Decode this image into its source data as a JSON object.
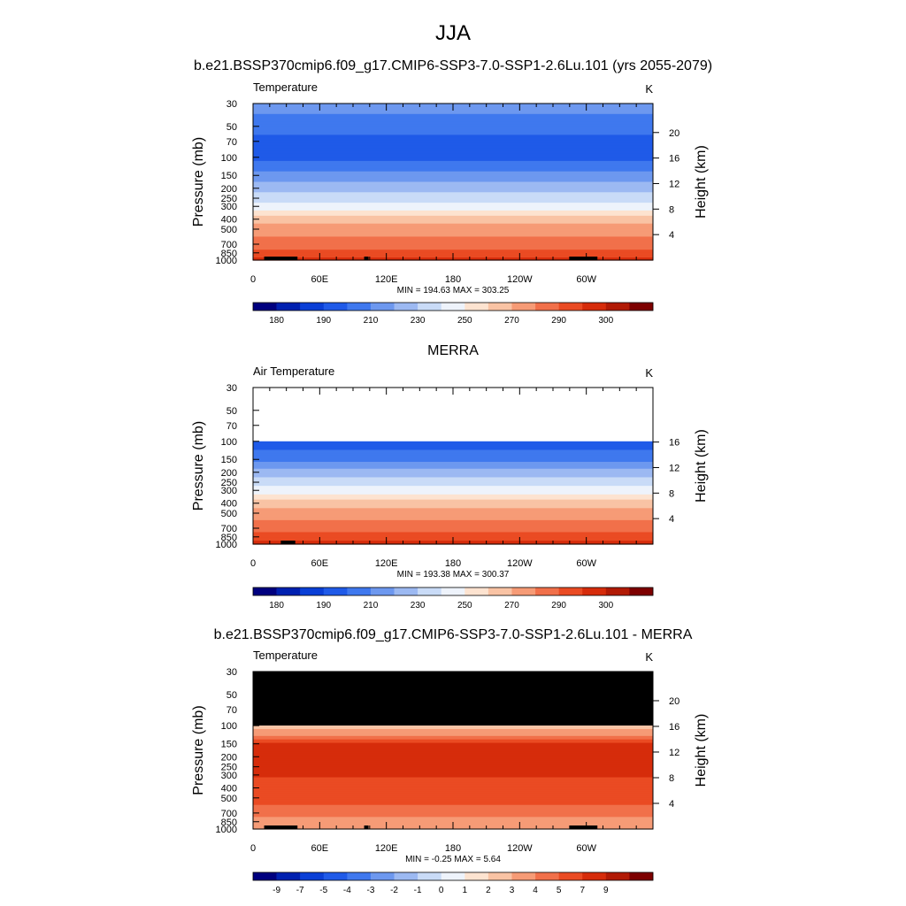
{
  "page": {
    "title": "JJA"
  },
  "colors": {
    "temp_levels": [
      "#00007f",
      "#0020b0",
      "#0a3fd6",
      "#1f5ae8",
      "#3f78ee",
      "#6d98ef",
      "#9cb9f2",
      "#c9dbf7",
      "#eef3fb",
      "#fde3d0",
      "#f9c3a4",
      "#f69b76",
      "#f1704a",
      "#ea4b23",
      "#d62c0b",
      "#b11a05",
      "#7d0000"
    ],
    "diff_levels": [
      "#00007f",
      "#0020b0",
      "#0a3fd6",
      "#1f5ae8",
      "#3f78ee",
      "#6d98ef",
      "#9cb9f2",
      "#c9dbf7",
      "#eef3fb",
      "#fde3d0",
      "#f9c3a4",
      "#f69b76",
      "#f1704a",
      "#ea4b23",
      "#d62c0b",
      "#b11a05",
      "#7d0000"
    ],
    "missing": "#000000"
  },
  "chart_data": [
    {
      "type": "heatmap",
      "title": "b.e21.BSSP370cmip6.f09_g17.CMIP6-SSP3-7.0-SSP1-2.6Lu.101 (yrs 2055-2079)",
      "left_label": "Temperature",
      "units": "K",
      "ylabel": "Pressure (mb)",
      "y2label": "Height (km)",
      "x_ticks": [
        "0",
        "60E",
        "120E",
        "180",
        "120W",
        "60W"
      ],
      "x_tick_values": [
        0,
        60,
        120,
        180,
        240,
        300
      ],
      "xlim": [
        0,
        360
      ],
      "y_ticks": [
        "30",
        "50",
        "70",
        "100",
        "150",
        "200",
        "250",
        "300",
        "400",
        "500",
        "700",
        "850",
        "1000"
      ],
      "y_tick_values": [
        30,
        50,
        70,
        100,
        150,
        200,
        250,
        300,
        400,
        500,
        700,
        850,
        1000
      ],
      "ylim": [
        30,
        1000
      ],
      "y_scale": "log",
      "y2_ticks": [
        "4",
        "8",
        "12",
        "16",
        "20"
      ],
      "y2_tick_values": [
        4,
        8,
        12,
        16,
        20
      ],
      "stats": "MIN = 194.63  MAX = 303.25",
      "min": 194.63,
      "max": 303.25,
      "colorbar_labels": [
        "180",
        "190",
        "210",
        "230",
        "250",
        "270",
        "290",
        "300"
      ],
      "profile": {
        "pressure": [
          30,
          50,
          70,
          100,
          150,
          200,
          250,
          300,
          400,
          500,
          700,
          850,
          1000
        ],
        "level_index": [
          5,
          4,
          3,
          3,
          5,
          6,
          7,
          8,
          10,
          11,
          12,
          13,
          14
        ]
      },
      "surface_blocks": [
        [
          10,
          40
        ],
        [
          100,
          104
        ],
        [
          285,
          310
        ]
      ]
    },
    {
      "type": "heatmap",
      "title": "MERRA",
      "left_label": "Air Temperature",
      "units": "K",
      "ylabel": "Pressure (mb)",
      "y2label": "Height (km)",
      "x_ticks": [
        "0",
        "60E",
        "120E",
        "180",
        "120W",
        "60W"
      ],
      "x_tick_values": [
        0,
        60,
        120,
        180,
        240,
        300
      ],
      "xlim": [
        0,
        360
      ],
      "y_ticks": [
        "30",
        "50",
        "70",
        "100",
        "150",
        "200",
        "250",
        "300",
        "400",
        "500",
        "700",
        "850",
        "1000"
      ],
      "y_tick_values": [
        30,
        50,
        70,
        100,
        150,
        200,
        250,
        300,
        400,
        500,
        700,
        850,
        1000
      ],
      "ylim": [
        30,
        1000
      ],
      "y_scale": "log",
      "y2_ticks": [
        "4",
        "8",
        "12",
        "16"
      ],
      "y2_tick_values": [
        4,
        8,
        12,
        16
      ],
      "stats": "MIN = 193.38  MAX = 300.37",
      "min": 193.38,
      "max": 300.37,
      "colorbar_labels": [
        "180",
        "190",
        "210",
        "230",
        "250",
        "270",
        "290",
        "300"
      ],
      "data_top_pressure": 100,
      "profile": {
        "pressure": [
          100,
          150,
          200,
          250,
          300,
          400,
          500,
          700,
          850,
          1000
        ],
        "level_index": [
          3,
          4,
          6,
          7,
          8,
          10,
          11,
          12,
          13,
          14
        ]
      },
      "surface_blocks": [
        [
          25,
          38
        ]
      ]
    },
    {
      "type": "heatmap",
      "title": "b.e21.BSSP370cmip6.f09_g17.CMIP6-SSP3-7.0-SSP1-2.6Lu.101 - MERRA",
      "left_label": "Temperature",
      "units": "K",
      "ylabel": "Pressure (mb)",
      "y2label": "Height (km)",
      "x_ticks": [
        "0",
        "60E",
        "120E",
        "180",
        "120W",
        "60W"
      ],
      "x_tick_values": [
        0,
        60,
        120,
        180,
        240,
        300
      ],
      "xlim": [
        0,
        360
      ],
      "y_ticks": [
        "30",
        "50",
        "70",
        "100",
        "150",
        "200",
        "250",
        "300",
        "400",
        "500",
        "700",
        "850",
        "1000"
      ],
      "y_tick_values": [
        30,
        50,
        70,
        100,
        150,
        200,
        250,
        300,
        400,
        500,
        700,
        850,
        1000
      ],
      "ylim": [
        30,
        1000
      ],
      "y_scale": "log",
      "y2_ticks": [
        "4",
        "8",
        "12",
        "16",
        "20"
      ],
      "y2_tick_values": [
        4,
        8,
        12,
        16,
        20
      ],
      "stats": "MIN =  -0.25  MAX =   5.64",
      "min": -0.25,
      "max": 5.64,
      "colorbar_labels": [
        "-9",
        "-7",
        "-5",
        "-4",
        "-3",
        "-2",
        "-1",
        "0",
        "1",
        "2",
        "3",
        "4",
        "5",
        "7",
        "9"
      ],
      "missing_above_pressure": 100,
      "profile": {
        "pressure": [
          100,
          120,
          150,
          250,
          400,
          500,
          700,
          850,
          1000
        ],
        "level_index": [
          10,
          11,
          14,
          14,
          13,
          13,
          12,
          11,
          11
        ]
      },
      "surface_blocks": [
        [
          10,
          40
        ],
        [
          100,
          104
        ],
        [
          285,
          310
        ]
      ]
    }
  ]
}
